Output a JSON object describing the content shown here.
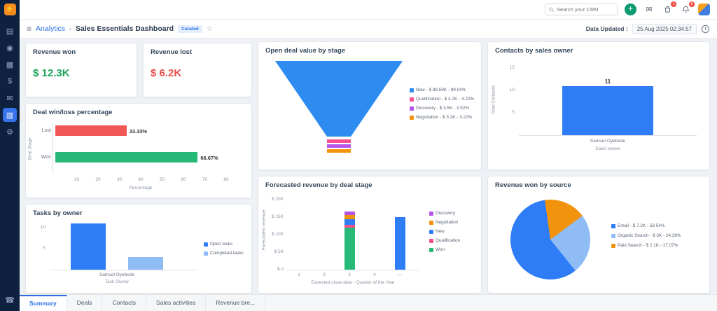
{
  "colors": {
    "blue": "#2e7cf6",
    "light_blue": "#8fbcf5",
    "green": "#27b977",
    "red": "#f25757",
    "orange": "#f2930d",
    "purple": "#b455e8",
    "pink": "#f64f8f",
    "teal": "#0a9b70",
    "sidebar_bg": "#0e2240"
  },
  "sidebar": {
    "items": [
      {
        "name": "modules"
      },
      {
        "name": "contacts"
      },
      {
        "name": "accounts"
      },
      {
        "name": "deals"
      },
      {
        "name": "mail"
      },
      {
        "name": "analytics",
        "active": true
      },
      {
        "name": "settings"
      }
    ]
  },
  "topbar": {
    "search_placeholder": "Search your CRM",
    "cart_badge": "1",
    "bell_badge": "8"
  },
  "breadcrumb": {
    "section": "Analytics",
    "separator": "›",
    "title": "Sales Essentials Dashboard",
    "badge": "Curated",
    "star": "☆",
    "updated_label": "Data Updated :",
    "updated_value": "25 Aug 2025 02:34:57"
  },
  "cards": {
    "revenue_won": {
      "title": "Revenue won",
      "value": "$ 12.3K"
    },
    "revenue_lost": {
      "title": "Revenue lost",
      "value": "$ 6.2K"
    }
  },
  "chart_data": [
    {
      "id": "win_loss",
      "type": "bar",
      "orientation": "horizontal",
      "title": "Deal win/loss percentage",
      "categories": [
        "Lost",
        "Won"
      ],
      "values": [
        33.33,
        66.67
      ],
      "value_labels": [
        "33.33%",
        "66.67%"
      ],
      "bar_colors": [
        "#f25757",
        "#27b977"
      ],
      "xticks": [
        10,
        20,
        30,
        40,
        50,
        60,
        70,
        80
      ],
      "xmax": 80,
      "xlabel": "Percentage",
      "ylabel": "Deal Stage"
    },
    {
      "id": "tasks",
      "type": "bar",
      "title": "Tasks by owner",
      "categories": [
        "Samuel Oyebode"
      ],
      "series": [
        {
          "name": "Open tasks",
          "color": "#2e7cf6",
          "values": [
            11
          ]
        },
        {
          "name": "Completed tasks",
          "color": "#8fbcf5",
          "values": [
            3
          ]
        }
      ],
      "yticks": [
        5,
        10
      ],
      "ymax": 12,
      "xlabel": "Task Owner",
      "legend_position": "right"
    },
    {
      "id": "contacts",
      "type": "bar",
      "title": "Contacts by sales owner",
      "categories": [
        "Samuel Oyebode"
      ],
      "values": [
        11
      ],
      "value_labels": [
        "11"
      ],
      "bar_color": "#2e7cf6",
      "yticks": [
        5,
        10,
        15
      ],
      "ymax": 15,
      "xlabel": "Sales owner",
      "ylabel": "Total Contacts"
    },
    {
      "id": "funnel",
      "type": "funnel",
      "title": "Open deal value by stage",
      "stages": [
        {
          "name": "New",
          "color": "#2e8cf0",
          "value": "$ 88.59K",
          "pct": 89.04,
          "label": "New   - $ 88.59K - 89.04%"
        },
        {
          "name": "Qualification",
          "color": "#f64f8f",
          "value": "$ 4.2K",
          "pct": 4.22,
          "label": "Qualification  - $ 4.2K - 4.22%"
        },
        {
          "name": "Discovery",
          "color": "#b455e8",
          "value": "$ 3.5K",
          "pct": 3.52,
          "label": "Discovery  - $ 3.5K - 3.52%"
        },
        {
          "name": "Negotiation",
          "color": "#f2930d",
          "value": "$ 3.2K",
          "pct": 3.22,
          "label": "Negotiation  - $ 3.2K - 3.22%"
        }
      ],
      "legend_position": "right"
    },
    {
      "id": "forecast",
      "type": "stacked-bar",
      "title": "Forecasted revenue by deal stage",
      "categories": [
        "1",
        "2",
        "3",
        "4",
        "—"
      ],
      "series": [
        {
          "name": "Won",
          "color": "#27b977",
          "values": [
            0,
            0,
            12,
            0,
            0
          ]
        },
        {
          "name": "Qualification",
          "color": "#f64f8f",
          "values": [
            0,
            0,
            0.9,
            0,
            0
          ]
        },
        {
          "name": "New",
          "color": "#2e7cf6",
          "values": [
            0,
            0,
            1.6,
            0,
            15
          ]
        },
        {
          "name": "Negotiation",
          "color": "#f2930d",
          "values": [
            0,
            0,
            1.2,
            0,
            0
          ]
        },
        {
          "name": "Discovery",
          "color": "#b455e8",
          "values": [
            0,
            0,
            0.9,
            0,
            0
          ]
        }
      ],
      "legend_order": [
        "Discovery",
        "Negotiation",
        "New",
        "Qualification",
        "Won"
      ],
      "ytick_labels": [
        "$ 0",
        "$ 5K",
        "$ 10K",
        "$ 15K",
        "$ 20K"
      ],
      "ytick_values": [
        0,
        5,
        10,
        15,
        20
      ],
      "ymax": 20,
      "xlabel": "Expected close date - Quarter of the Year",
      "ylabel": "Forecasted revenue",
      "legend_position": "right"
    },
    {
      "id": "sources",
      "type": "pie",
      "title": "Revenue won by source",
      "slices": [
        {
          "name": "Email",
          "color": "#2e7cf6",
          "value": "$ 7.2K",
          "pct": 58.54,
          "label": "Email  - $ 7.2K - 58.54%"
        },
        {
          "name": "Organic Search",
          "color": "#8fbcf5",
          "value": "$ 3K",
          "pct": 24.39,
          "label": "Organic Search  - $ 3K - 24.39%"
        },
        {
          "name": "Paid Search",
          "color": "#f2930d",
          "value": "$ 2.1K",
          "pct": 17.07,
          "label": "Paid Search  - $ 2.1K - 17.07%"
        }
      ],
      "legend_position": "right"
    }
  ],
  "tabs": [
    {
      "label": "Summary",
      "active": true
    },
    {
      "label": "Deals",
      "active": false
    },
    {
      "label": "Contacts",
      "active": false
    },
    {
      "label": "Sales activities",
      "active": false
    },
    {
      "label": "Revenue bre...",
      "active": false
    }
  ]
}
